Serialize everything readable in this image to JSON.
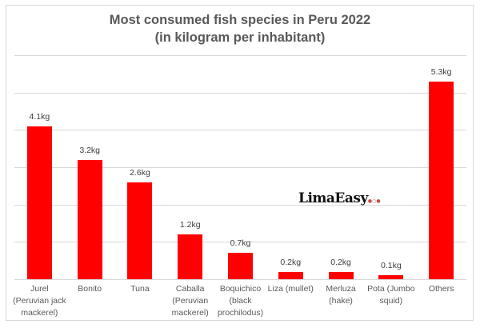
{
  "chart_data": {
    "type": "bar",
    "title": "Most consumed fish species in Peru 2022",
    "subtitle": "(in kilogram per inhabitant)",
    "xlabel": "",
    "ylabel": "",
    "ylim": [
      0,
      6
    ],
    "grid": true,
    "legend": "none",
    "bar_color": "#ff0000",
    "categories": [
      "Jurel (Peruvian jack mackerel)",
      "Bonito",
      "Tuna",
      "Caballa (Peruvian mackerel)",
      "Boquichico (black prochilodus)",
      "Liza (mullet)",
      "Merluza (hake)",
      "Pota (Jumbo squid)",
      "Others"
    ],
    "values": [
      4.1,
      3.2,
      2.6,
      1.2,
      0.7,
      0.2,
      0.2,
      0.1,
      5.3
    ],
    "data_labels": [
      "4.1kg",
      "3.2kg",
      "2.6kg",
      "1.2kg",
      "0.7kg",
      "0.2kg",
      "0.2kg",
      "0.1kg",
      "5.3kg"
    ],
    "watermark": "LimaEasy"
  },
  "labels": {
    "x": [
      [
        "Jurel",
        "(Peruvian jack",
        "mackerel)"
      ],
      [
        "Bonito"
      ],
      [
        "Tuna"
      ],
      [
        "Caballa",
        "(Peruvian",
        "mackerel)"
      ],
      [
        "Boquichico",
        "(black",
        "prochilodus)"
      ],
      [
        "Liza (mullet)"
      ],
      [
        "Merluza",
        "(hake)"
      ],
      [
        "Pota (Jumbo",
        "squid)"
      ],
      [
        "Others"
      ]
    ]
  }
}
